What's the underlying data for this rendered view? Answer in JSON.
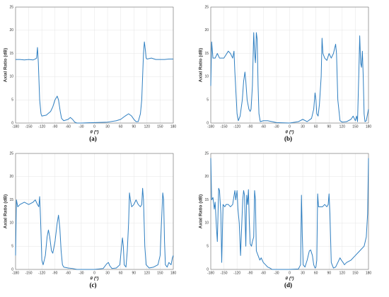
{
  "chart_data": [
    {
      "type": "line",
      "caption": "(a)",
      "x_label": "θ (º)",
      "y_label": "Axial Ratio (dB)",
      "color": "#2f7fc1",
      "xlim": [
        -180,
        180
      ],
      "ylim": [
        0,
        25
      ],
      "xticks": [
        -180,
        -150,
        -120,
        -90,
        -60,
        -30,
        0,
        30,
        60,
        90,
        120,
        150,
        180
      ],
      "yticks": [
        0,
        5,
        10,
        15,
        20,
        25
      ],
      "grid": true,
      "x": [
        -180,
        -170,
        -160,
        -150,
        -140,
        -135,
        -132,
        -130,
        -128,
        -125,
        -122,
        -120,
        -110,
        -100,
        -95,
        -90,
        -85,
        -82,
        -78,
        -75,
        -70,
        -60,
        -55,
        -50,
        -45,
        -40,
        -30,
        0,
        30,
        50,
        60,
        70,
        78,
        85,
        90,
        95,
        100,
        105,
        108,
        110,
        112,
        114,
        116,
        118,
        120,
        130,
        140,
        160,
        170,
        180
      ],
      "values": [
        13.7,
        13.7,
        13.6,
        13.7,
        13.6,
        13.8,
        14,
        16.3,
        13,
        5,
        2,
        1.5,
        1.7,
        2.5,
        3.5,
        5,
        5.8,
        5,
        2.5,
        1,
        0.5,
        0.8,
        1.2,
        0.8,
        0.2,
        0,
        0,
        0.1,
        0.2,
        0.5,
        0.8,
        1.5,
        2,
        1.5,
        0.8,
        0.3,
        0.3,
        2,
        5,
        10,
        15,
        17.5,
        16,
        14,
        13.8,
        14,
        13.7,
        13.7,
        13.8,
        13.8
      ]
    },
    {
      "type": "line",
      "caption": "(b)",
      "x_label": "θ (º)",
      "y_label": "Axial Ratio (dB)",
      "color": "#2f7fc1",
      "xlim": [
        -180,
        180
      ],
      "ylim": [
        0,
        25
      ],
      "xticks": [
        -180,
        -150,
        -120,
        -90,
        -60,
        -30,
        0,
        30,
        60,
        90,
        120,
        150,
        180
      ],
      "yticks": [
        0,
        5,
        10,
        15,
        20,
        25
      ],
      "grid": true,
      "x": [
        -180,
        -178,
        -175,
        -170,
        -165,
        -160,
        -150,
        -140,
        -135,
        -130,
        -127,
        -125,
        -120,
        -117,
        -113,
        -108,
        -105,
        -102,
        -100,
        -97,
        -93,
        -90,
        -88,
        -85,
        -82,
        -80,
        -78,
        -76,
        -74,
        -72,
        -70,
        -67,
        -60,
        -50,
        -40,
        -30,
        0,
        20,
        30,
        40,
        50,
        55,
        58,
        60,
        62,
        65,
        68,
        72,
        74,
        76,
        80,
        85,
        90,
        95,
        100,
        105,
        107,
        110,
        115,
        120,
        130,
        140,
        145,
        150,
        153,
        155,
        158,
        160,
        162,
        164,
        166,
        168,
        170,
        172,
        175,
        178,
        180
      ],
      "values": [
        8,
        17.5,
        14,
        14,
        15,
        14,
        14,
        15.5,
        15,
        14,
        15.5,
        11,
        2,
        0.5,
        1.5,
        5,
        9,
        11,
        9,
        5,
        3,
        2.5,
        3,
        8,
        19.5,
        15,
        13,
        19.5,
        18,
        8,
        2,
        0.3,
        0.5,
        0.5,
        0.3,
        0.1,
        0,
        0.3,
        0.8,
        0.3,
        1,
        3,
        6.5,
        5,
        2,
        1.5,
        4,
        10,
        18.3,
        15,
        14,
        13.5,
        15,
        14,
        15,
        17,
        15,
        5,
        0.5,
        0.2,
        0.3,
        0.8,
        1.5,
        0.5,
        1.5,
        0.3,
        11,
        18.8,
        13,
        12,
        15.5,
        10,
        2,
        0.3,
        0.5,
        2,
        3
      ]
    },
    {
      "type": "line",
      "caption": "(c)",
      "x_label": "θ (º)",
      "y_label": "Axial Ratio (dB)",
      "color": "#2f7fc1",
      "xlim": [
        -180,
        180
      ],
      "ylim": [
        0,
        25
      ],
      "xticks": [
        -180,
        -150,
        -120,
        -90,
        -60,
        -30,
        0,
        30,
        60,
        90,
        120,
        150,
        180
      ],
      "yticks": [
        0,
        5,
        10,
        15,
        20,
        25
      ],
      "grid": true,
      "x": [
        -180,
        -178,
        -175,
        -170,
        -160,
        -150,
        -140,
        -135,
        -130,
        -127,
        -125,
        -123,
        -120,
        -117,
        -112,
        -108,
        -105,
        -102,
        -98,
        -95,
        -90,
        -85,
        -82,
        -79,
        -76,
        -73,
        -70,
        -60,
        -50,
        -40,
        0,
        20,
        28,
        32,
        35,
        40,
        50,
        58,
        62,
        64,
        66,
        68,
        72,
        75,
        78,
        80,
        82,
        85,
        90,
        95,
        100,
        105,
        108,
        110,
        112,
        115,
        118,
        125,
        135,
        145,
        150,
        153,
        156,
        158,
        160,
        162,
        166,
        170,
        175,
        178,
        180
      ],
      "values": [
        3,
        15,
        13.5,
        14,
        14.5,
        14,
        14.5,
        15,
        14,
        13.5,
        15.7,
        11,
        2,
        1,
        3,
        7,
        8.5,
        7,
        4,
        3.5,
        6,
        10,
        11.7,
        9,
        4,
        1,
        0.5,
        0.3,
        0.2,
        0,
        0,
        0.2,
        1.2,
        1.5,
        0.8,
        0.2,
        0.3,
        1,
        5,
        6.8,
        5,
        1,
        0.5,
        4,
        10,
        16.5,
        15,
        13.5,
        14,
        15,
        14,
        13.5,
        14,
        17.5,
        15,
        5,
        1,
        0.3,
        0.5,
        1,
        3,
        10,
        16.5,
        15,
        6,
        1,
        0.5,
        1.5,
        1,
        2.5,
        3
      ]
    },
    {
      "type": "line",
      "caption": "(d)",
      "x_label": "θ (º)",
      "y_label": "Axial Ratio (dB)",
      "color": "#2f7fc1",
      "xlim": [
        -180,
        180
      ],
      "ylim": [
        0,
        25
      ],
      "xticks": [
        -180,
        -150,
        -120,
        -90,
        -60,
        -30,
        0,
        30,
        60,
        90,
        120,
        150,
        180
      ],
      "yticks": [
        0,
        5,
        10,
        15,
        20,
        25
      ],
      "grid": true,
      "x": [
        -180,
        -178,
        -175,
        -172,
        -170,
        -167,
        -165,
        -162,
        -160,
        -157,
        -155,
        -152,
        -148,
        -145,
        -140,
        -135,
        -130,
        -125,
        -123,
        -120,
        -118,
        -115,
        -112,
        -110,
        -107,
        -105,
        -103,
        -100,
        -98,
        -96,
        -94,
        -92,
        -90,
        -87,
        -85,
        -82,
        -80,
        -78,
        -76,
        -72,
        -68,
        -65,
        -60,
        -55,
        -50,
        -45,
        -40,
        -20,
        0,
        20,
        25,
        27,
        29,
        31,
        35,
        40,
        45,
        48,
        52,
        55,
        58,
        60,
        62,
        64,
        66,
        70,
        75,
        80,
        85,
        88,
        90,
        92,
        95,
        100,
        105,
        110,
        115,
        118,
        122,
        125,
        130,
        140,
        150,
        160,
        170,
        175,
        178,
        180
      ],
      "values": [
        24,
        15,
        15.5,
        13,
        14.5,
        9,
        6,
        17.5,
        17,
        12,
        1.5,
        14,
        13.5,
        14,
        14,
        13.5,
        14,
        17,
        15,
        17,
        13,
        10,
        3,
        8,
        15,
        17,
        16,
        5,
        16,
        14,
        17.2,
        10,
        5.5,
        5,
        6,
        7,
        17,
        15,
        4,
        3,
        2,
        2.5,
        1.5,
        1,
        0.5,
        0.3,
        0,
        0,
        0,
        0.1,
        1,
        16,
        7,
        1,
        0.5,
        2,
        4,
        4.2,
        3,
        1,
        0.3,
        0.5,
        2,
        16.3,
        13.5,
        13.5,
        13.5,
        14,
        13.5,
        14,
        16.3,
        12,
        1.5,
        0.3,
        0.5,
        1.5,
        2.5,
        2,
        1.5,
        1,
        1.5,
        2,
        3,
        4,
        5,
        7,
        12,
        24
      ]
    }
  ]
}
